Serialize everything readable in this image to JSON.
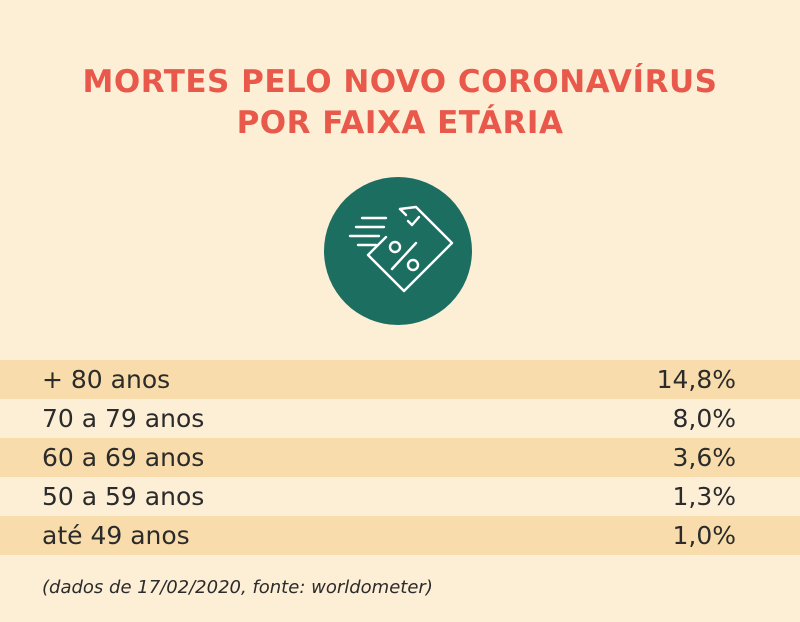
{
  "title_line1": "MORTES PELO NOVO CORONAVÍRUS",
  "title_line2": "POR FAIXA ETÁRIA",
  "icon": "price-tag-percent-icon",
  "colors": {
    "title": "#e8594b",
    "badge": "#1c6e61",
    "row_highlight": "#f9dcab",
    "background": "#fdefd6"
  },
  "chart_data": {
    "type": "table",
    "title": "MORTES PELO NOVO CORONAVÍRUS POR FAIXA ETÁRIA",
    "categories": [
      "+ 80 anos",
      "70 a 79 anos",
      "60 a 69 anos",
      "50 a 59 anos",
      "até 49 anos"
    ],
    "values": [
      14.8,
      8.0,
      3.6,
      1.3,
      1.0
    ],
    "value_labels": [
      "14,8%",
      "8,0%",
      "3,6%",
      "1,3%",
      "1,0%"
    ]
  },
  "footnote": "(dados de 17/02/2020, fonte: worldometer)"
}
